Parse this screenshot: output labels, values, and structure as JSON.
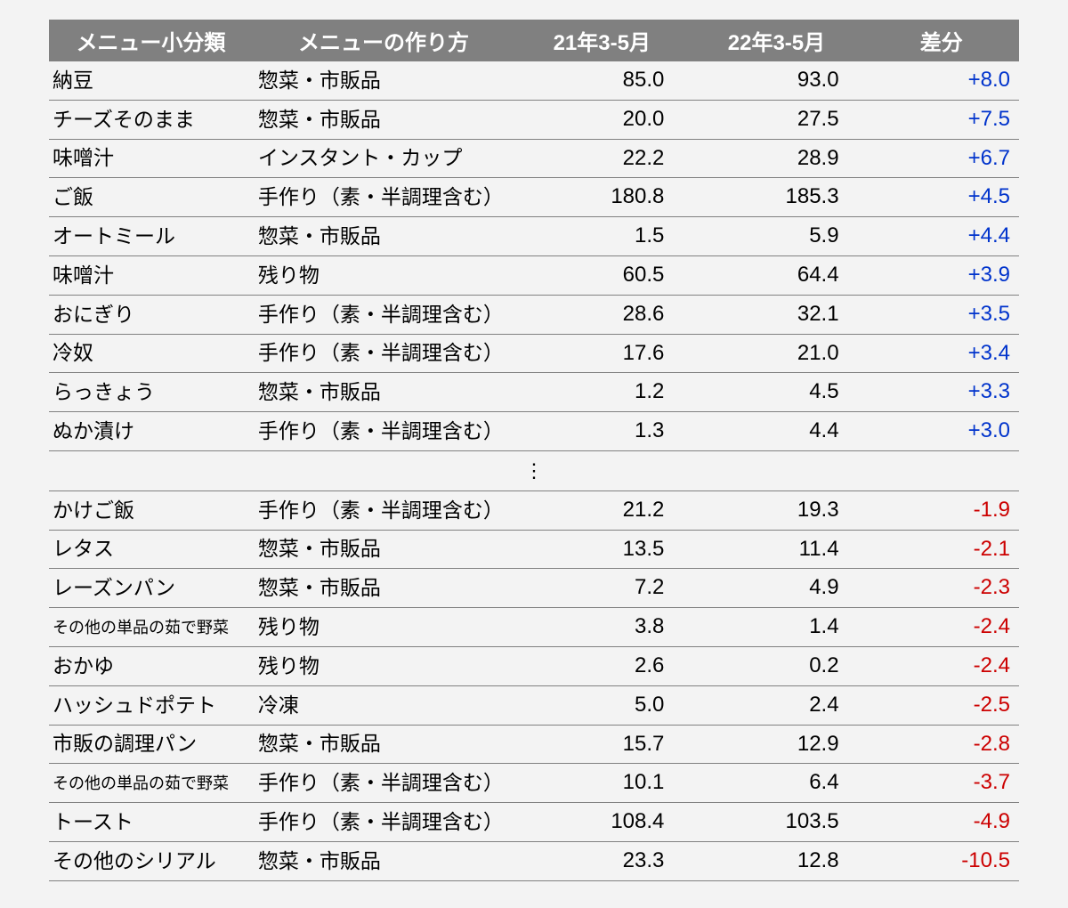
{
  "table": {
    "type": "table",
    "background_color": "#f3f3f3",
    "header_bg": "#808080",
    "header_fg": "#ffffff",
    "row_border_color": "#808080",
    "text_color": "#000000",
    "diff_pos_color": "#0033cc",
    "diff_neg_color": "#cc0000",
    "font_family": "Meiryo / Hiragino Kaku Gothic / MS PGothic",
    "header_fontsize_pt": 18,
    "body_fontsize_pt": 18,
    "small_cat_fontsize_pt": 13,
    "col_widths_pct": [
      21,
      27,
      18,
      18,
      16
    ],
    "col_align": [
      "left",
      "left",
      "right",
      "right",
      "right"
    ],
    "columns": [
      "メニュー小分類",
      "メニューの作り方",
      "21年3-5月",
      "22年3-5月",
      "差分"
    ],
    "ellipsis": "⋮",
    "rows_top": [
      {
        "cat": "納豆",
        "cat_small": false,
        "method": "惣菜・市販品",
        "y21": "85.0",
        "y22": "93.0",
        "diff": "+8.0",
        "sign": "pos"
      },
      {
        "cat": "チーズそのまま",
        "cat_small": false,
        "method": "惣菜・市販品",
        "y21": "20.0",
        "y22": "27.5",
        "diff": "+7.5",
        "sign": "pos"
      },
      {
        "cat": "味噌汁",
        "cat_small": false,
        "method": "インスタント・カップ",
        "y21": "22.2",
        "y22": "28.9",
        "diff": "+6.7",
        "sign": "pos"
      },
      {
        "cat": "ご飯",
        "cat_small": false,
        "method": "手作り（素・半調理含む）",
        "y21": "180.8",
        "y22": "185.3",
        "diff": "+4.5",
        "sign": "pos"
      },
      {
        "cat": "オートミール",
        "cat_small": false,
        "method": "惣菜・市販品",
        "y21": "1.5",
        "y22": "5.9",
        "diff": "+4.4",
        "sign": "pos"
      },
      {
        "cat": "味噌汁",
        "cat_small": false,
        "method": "残り物",
        "y21": "60.5",
        "y22": "64.4",
        "diff": "+3.9",
        "sign": "pos"
      },
      {
        "cat": "おにぎり",
        "cat_small": false,
        "method": "手作り（素・半調理含む）",
        "y21": "28.6",
        "y22": "32.1",
        "diff": "+3.5",
        "sign": "pos"
      },
      {
        "cat": "冷奴",
        "cat_small": false,
        "method": "手作り（素・半調理含む）",
        "y21": "17.6",
        "y22": "21.0",
        "diff": "+3.4",
        "sign": "pos"
      },
      {
        "cat": "らっきょう",
        "cat_small": false,
        "method": "惣菜・市販品",
        "y21": "1.2",
        "y22": "4.5",
        "diff": "+3.3",
        "sign": "pos"
      },
      {
        "cat": "ぬか漬け",
        "cat_small": false,
        "method": "手作り（素・半調理含む）",
        "y21": "1.3",
        "y22": "4.4",
        "diff": "+3.0",
        "sign": "pos"
      }
    ],
    "rows_bottom": [
      {
        "cat": "かけご飯",
        "cat_small": false,
        "method": "手作り（素・半調理含む）",
        "y21": "21.2",
        "y22": "19.3",
        "diff": "-1.9",
        "sign": "neg"
      },
      {
        "cat": "レタス",
        "cat_small": false,
        "method": "惣菜・市販品",
        "y21": "13.5",
        "y22": "11.4",
        "diff": "-2.1",
        "sign": "neg"
      },
      {
        "cat": "レーズンパン",
        "cat_small": false,
        "method": "惣菜・市販品",
        "y21": "7.2",
        "y22": "4.9",
        "diff": "-2.3",
        "sign": "neg"
      },
      {
        "cat": "その他の単品の茹で野菜",
        "cat_small": true,
        "method": "残り物",
        "y21": "3.8",
        "y22": "1.4",
        "diff": "-2.4",
        "sign": "neg"
      },
      {
        "cat": "おかゆ",
        "cat_small": false,
        "method": "残り物",
        "y21": "2.6",
        "y22": "0.2",
        "diff": "-2.4",
        "sign": "neg"
      },
      {
        "cat": "ハッシュドポテト",
        "cat_small": false,
        "method": "冷凍",
        "y21": "5.0",
        "y22": "2.4",
        "diff": "-2.5",
        "sign": "neg"
      },
      {
        "cat": "市販の調理パン",
        "cat_small": false,
        "method": "惣菜・市販品",
        "y21": "15.7",
        "y22": "12.9",
        "diff": "-2.8",
        "sign": "neg"
      },
      {
        "cat": "その他の単品の茹で野菜",
        "cat_small": true,
        "method": "手作り（素・半調理含む）",
        "y21": "10.1",
        "y22": "6.4",
        "diff": "-3.7",
        "sign": "neg"
      },
      {
        "cat": "トースト",
        "cat_small": false,
        "method": "手作り（素・半調理含む）",
        "y21": "108.4",
        "y22": "103.5",
        "diff": "-4.9",
        "sign": "neg"
      },
      {
        "cat": "その他のシリアル",
        "cat_small": false,
        "method": "惣菜・市販品",
        "y21": "23.3",
        "y22": "12.8",
        "diff": "-10.5",
        "sign": "neg"
      }
    ]
  }
}
